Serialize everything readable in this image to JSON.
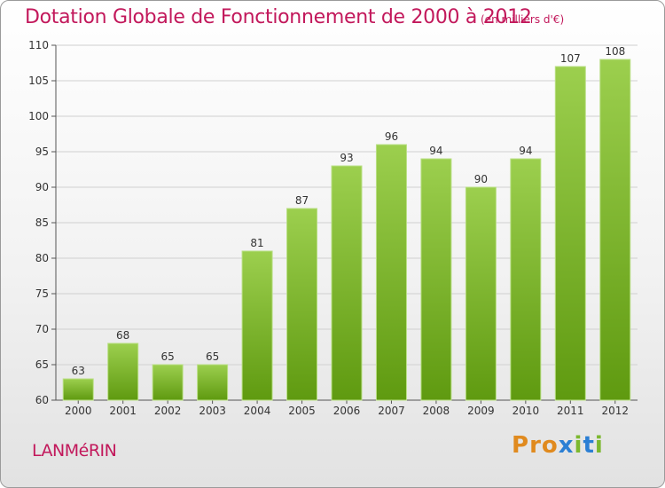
{
  "header": {
    "title": "Dotation Globale de Fonctionnement de 2000 à 2012",
    "unit": "(en milliers d'€)"
  },
  "footer": {
    "place": "LANMéRIN",
    "logo": [
      "P",
      "r",
      "o",
      "x",
      "i",
      "t",
      "i"
    ]
  },
  "colors": {
    "title": "#c2185b",
    "bar_top": "#9ccf4e",
    "bar_bottom": "#5f9a10",
    "logo": [
      "#e08a1e",
      "#e08a1e",
      "#e08a1e",
      "#2b7fd4",
      "#7cb82f",
      "#2b7fd4",
      "#7cb82f"
    ]
  },
  "chart_data": {
    "type": "bar",
    "title": "Dotation Globale de Fonctionnement de 2000 à 2012",
    "subtitle": "(en milliers d'€)",
    "categories": [
      "2000",
      "2001",
      "2002",
      "2003",
      "2004",
      "2005",
      "2006",
      "2007",
      "2008",
      "2009",
      "2010",
      "2011",
      "2012"
    ],
    "values": [
      63,
      68,
      65,
      65,
      81,
      87,
      93,
      96,
      94,
      90,
      94,
      107,
      108
    ],
    "ylim": [
      60,
      110
    ],
    "yticks": [
      60,
      65,
      70,
      75,
      80,
      85,
      90,
      95,
      100,
      105,
      110
    ],
    "grid": true,
    "data_labels": true
  }
}
